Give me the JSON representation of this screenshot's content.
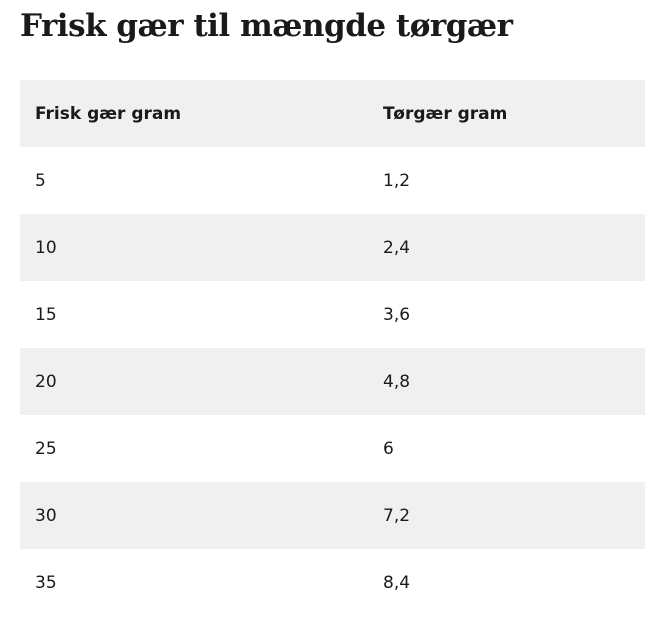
{
  "header": {
    "title": "Frisk gær til mængde tørgær"
  },
  "table": {
    "columns": [
      "Frisk gær gram",
      "Tørgær gram"
    ],
    "rows": [
      [
        "5",
        "1,2"
      ],
      [
        "10",
        "2,4"
      ],
      [
        "15",
        "3,6"
      ],
      [
        "20",
        "4,8"
      ],
      [
        "25",
        "6"
      ],
      [
        "30",
        "7,2"
      ],
      [
        "35",
        "8,4"
      ]
    ]
  }
}
